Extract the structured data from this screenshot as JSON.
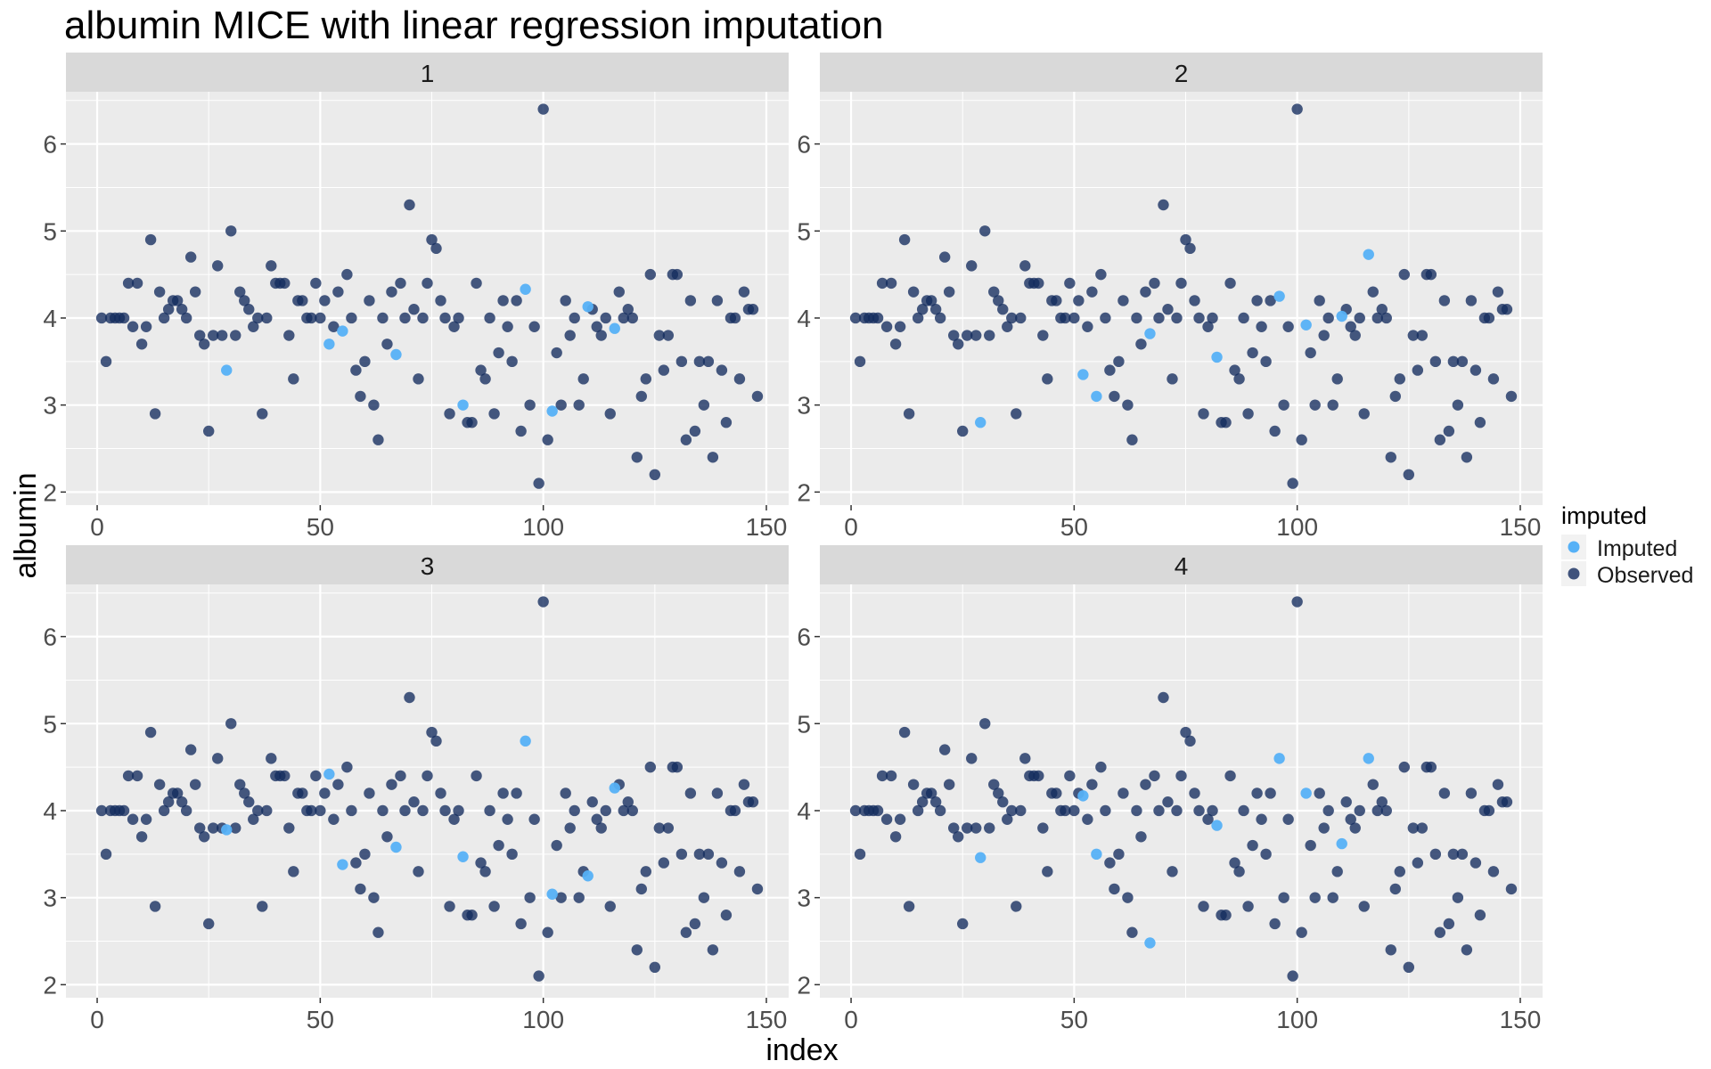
{
  "chart_data": {
    "type": "scatter",
    "title": "albumin MICE with linear regression imputation",
    "xlabel": "index",
    "ylabel": "albumin",
    "xlim": [
      -7,
      155
    ],
    "ylim": [
      1.85,
      6.6
    ],
    "xticks": [
      0,
      50,
      100,
      150
    ],
    "yticks": [
      2,
      3,
      4,
      5,
      6
    ],
    "grid": true,
    "legend": {
      "title": "imputed",
      "position": "right",
      "entries": [
        {
          "label": "Imputed",
          "color": "#56B1F7"
        },
        {
          "label": "Observed",
          "color": "#132B5E"
        }
      ]
    },
    "observed": [
      [
        1,
        4.0
      ],
      [
        2,
        3.5
      ],
      [
        3,
        4.0
      ],
      [
        4,
        4.0
      ],
      [
        5,
        4.0
      ],
      [
        6,
        4.0
      ],
      [
        7,
        4.4
      ],
      [
        8,
        3.9
      ],
      [
        9,
        4.4
      ],
      [
        10,
        3.7
      ],
      [
        11,
        3.9
      ],
      [
        12,
        4.9
      ],
      [
        13,
        2.9
      ],
      [
        14,
        4.3
      ],
      [
        15,
        4.0
      ],
      [
        16,
        4.1
      ],
      [
        17,
        4.2
      ],
      [
        18,
        4.2
      ],
      [
        19,
        4.1
      ],
      [
        20,
        4.0
      ],
      [
        21,
        4.7
      ],
      [
        22,
        4.3
      ],
      [
        23,
        3.8
      ],
      [
        24,
        3.7
      ],
      [
        25,
        2.7
      ],
      [
        26,
        3.8
      ],
      [
        27,
        4.6
      ],
      [
        28,
        3.8
      ],
      [
        30,
        5.0
      ],
      [
        31,
        3.8
      ],
      [
        32,
        4.3
      ],
      [
        33,
        4.2
      ],
      [
        34,
        4.1
      ],
      [
        35,
        3.9
      ],
      [
        36,
        4.0
      ],
      [
        37,
        2.9
      ],
      [
        38,
        4.0
      ],
      [
        39,
        4.6
      ],
      [
        40,
        4.4
      ],
      [
        41,
        4.4
      ],
      [
        42,
        4.4
      ],
      [
        43,
        3.8
      ],
      [
        44,
        3.3
      ],
      [
        45,
        4.2
      ],
      [
        46,
        4.2
      ],
      [
        47,
        4.0
      ],
      [
        48,
        4.0
      ],
      [
        49,
        4.4
      ],
      [
        50,
        4.0
      ],
      [
        51,
        4.2
      ],
      [
        53,
        3.9
      ],
      [
        54,
        4.3
      ],
      [
        56,
        4.5
      ],
      [
        57,
        4.0
      ],
      [
        58,
        3.4
      ],
      [
        59,
        3.1
      ],
      [
        60,
        3.5
      ],
      [
        61,
        4.2
      ],
      [
        62,
        3.0
      ],
      [
        63,
        2.6
      ],
      [
        64,
        4.0
      ],
      [
        65,
        3.7
      ],
      [
        66,
        4.3
      ],
      [
        68,
        4.4
      ],
      [
        69,
        4.0
      ],
      [
        70,
        5.3
      ],
      [
        71,
        4.1
      ],
      [
        72,
        3.3
      ],
      [
        73,
        4.0
      ],
      [
        74,
        4.4
      ],
      [
        75,
        4.9
      ],
      [
        76,
        4.8
      ],
      [
        77,
        4.2
      ],
      [
        78,
        4.0
      ],
      [
        79,
        2.9
      ],
      [
        80,
        3.9
      ],
      [
        81,
        4.0
      ],
      [
        83,
        2.8
      ],
      [
        84,
        2.8
      ],
      [
        85,
        4.4
      ],
      [
        86,
        3.4
      ],
      [
        87,
        3.3
      ],
      [
        88,
        4.0
      ],
      [
        89,
        2.9
      ],
      [
        90,
        3.6
      ],
      [
        91,
        4.2
      ],
      [
        92,
        3.9
      ],
      [
        93,
        3.5
      ],
      [
        94,
        4.2
      ],
      [
        95,
        2.7
      ],
      [
        97,
        3.0
      ],
      [
        98,
        3.9
      ],
      [
        99,
        2.1
      ],
      [
        100,
        6.4
      ],
      [
        101,
        2.6
      ],
      [
        103,
        3.6
      ],
      [
        104,
        3.0
      ],
      [
        105,
        4.2
      ],
      [
        106,
        3.8
      ],
      [
        107,
        4.0
      ],
      [
        108,
        3.0
      ],
      [
        109,
        3.3
      ],
      [
        111,
        4.1
      ],
      [
        112,
        3.9
      ],
      [
        113,
        3.8
      ],
      [
        114,
        4.0
      ],
      [
        115,
        2.9
      ],
      [
        117,
        4.3
      ],
      [
        118,
        4.0
      ],
      [
        119,
        4.1
      ],
      [
        120,
        4.0
      ],
      [
        121,
        2.4
      ],
      [
        122,
        3.1
      ],
      [
        123,
        3.3
      ],
      [
        124,
        4.5
      ],
      [
        125,
        2.2
      ],
      [
        126,
        3.8
      ],
      [
        127,
        3.4
      ],
      [
        128,
        3.8
      ],
      [
        129,
        4.5
      ],
      [
        130,
        4.5
      ],
      [
        131,
        3.5
      ],
      [
        132,
        2.6
      ],
      [
        133,
        4.2
      ],
      [
        134,
        2.7
      ],
      [
        135,
        3.5
      ],
      [
        136,
        3.0
      ],
      [
        137,
        3.5
      ],
      [
        138,
        2.4
      ],
      [
        139,
        4.2
      ],
      [
        140,
        3.4
      ],
      [
        141,
        2.8
      ],
      [
        142,
        4.0
      ],
      [
        143,
        4.0
      ],
      [
        144,
        3.3
      ],
      [
        145,
        4.3
      ],
      [
        146,
        4.1
      ],
      [
        147,
        4.1
      ],
      [
        148,
        3.1
      ]
    ],
    "panels": [
      {
        "label": "1",
        "imputed": [
          [
            29,
            3.4
          ],
          [
            52,
            3.7
          ],
          [
            55,
            3.85
          ],
          [
            67,
            3.58
          ],
          [
            82,
            3.0
          ],
          [
            96,
            4.33
          ],
          [
            102,
            2.93
          ],
          [
            110,
            4.13
          ],
          [
            116,
            3.88
          ]
        ]
      },
      {
        "label": "2",
        "imputed": [
          [
            29,
            2.8
          ],
          [
            52,
            3.35
          ],
          [
            55,
            3.1
          ],
          [
            67,
            3.82
          ],
          [
            82,
            3.55
          ],
          [
            96,
            4.25
          ],
          [
            102,
            3.92
          ],
          [
            110,
            4.02
          ],
          [
            116,
            4.73
          ]
        ]
      },
      {
        "label": "3",
        "imputed": [
          [
            29,
            3.78
          ],
          [
            52,
            4.42
          ],
          [
            55,
            3.38
          ],
          [
            67,
            3.58
          ],
          [
            82,
            3.47
          ],
          [
            96,
            4.8
          ],
          [
            102,
            3.04
          ],
          [
            110,
            3.25
          ],
          [
            116,
            4.26
          ]
        ]
      },
      {
        "label": "4",
        "imputed": [
          [
            29,
            3.46
          ],
          [
            52,
            4.17
          ],
          [
            55,
            3.5
          ],
          [
            67,
            2.48
          ],
          [
            82,
            3.83
          ],
          [
            96,
            4.6
          ],
          [
            102,
            4.2
          ],
          [
            110,
            3.62
          ],
          [
            116,
            4.6
          ]
        ]
      }
    ]
  },
  "colors": {
    "imputed": "#56B1F7",
    "observed": "#132B5E",
    "panel_bg": "#EBEBEB",
    "strip_bg": "#D9D9D9",
    "grid": "#FFFFFF"
  }
}
